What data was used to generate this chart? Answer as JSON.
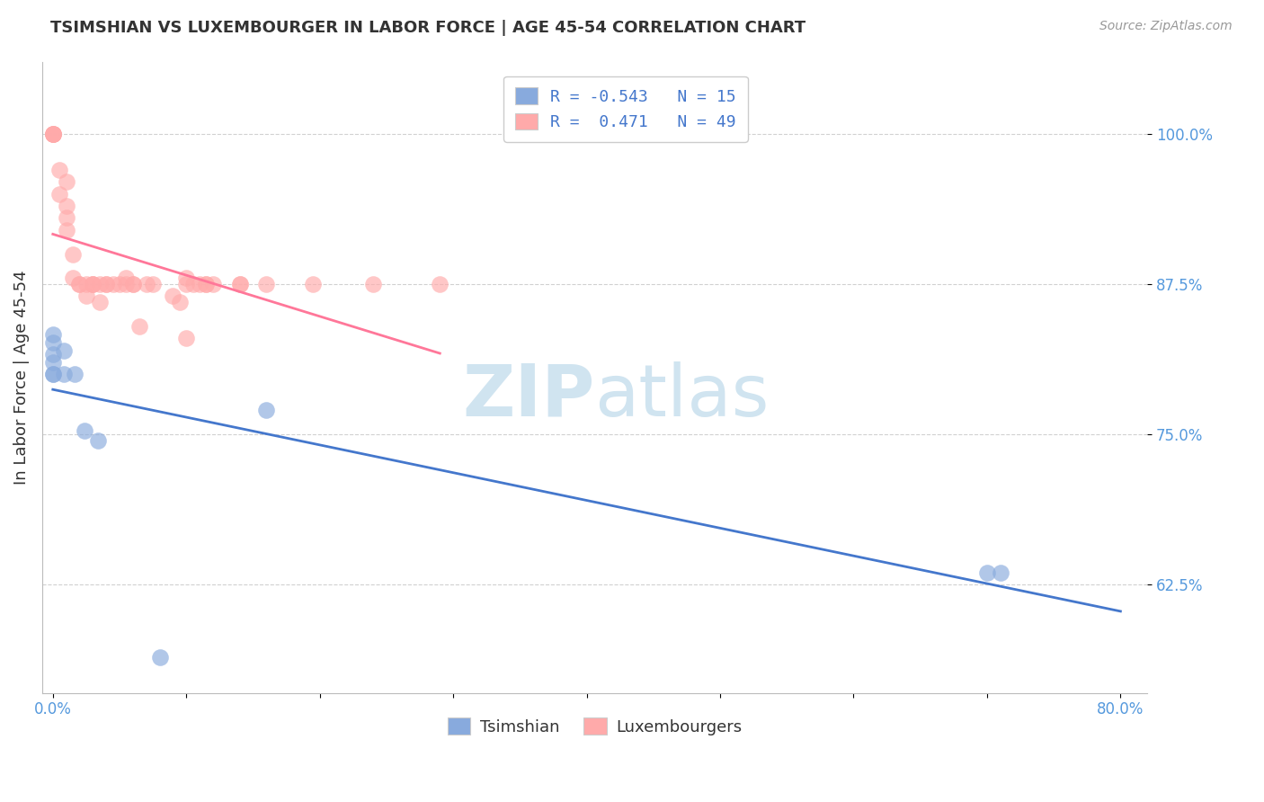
{
  "title": "TSIMSHIAN VS LUXEMBOURGER IN LABOR FORCE | AGE 45-54 CORRELATION CHART",
  "source": "Source: ZipAtlas.com",
  "ylabel": "In Labor Force | Age 45-54",
  "ytick_labels": [
    "62.5%",
    "75.0%",
    "87.5%",
    "100.0%"
  ],
  "ytick_values": [
    0.625,
    0.75,
    0.875,
    1.0
  ],
  "xlim": [
    -0.008,
    0.82
  ],
  "ylim": [
    0.535,
    1.06
  ],
  "tsimshian_color": "#88AADD",
  "luxembourger_color": "#FFAAAA",
  "tsimshian_line_color": "#4477CC",
  "luxembourger_line_color": "#FF7799",
  "watermark_color": "#D0E4F0",
  "tsimshian_x": [
    0.0,
    0.0,
    0.0,
    0.0,
    0.0,
    0.0,
    0.008,
    0.008,
    0.016,
    0.024,
    0.034,
    0.7,
    0.71,
    0.16,
    0.08
  ],
  "tsimshian_y": [
    0.826,
    0.817,
    0.81,
    0.833,
    0.8,
    0.8,
    0.8,
    0.82,
    0.8,
    0.753,
    0.745,
    0.635,
    0.635,
    0.77,
    0.565
  ],
  "luxembourger_x": [
    0.0,
    0.0,
    0.0,
    0.0,
    0.0,
    0.005,
    0.005,
    0.01,
    0.01,
    0.01,
    0.01,
    0.015,
    0.015,
    0.02,
    0.02,
    0.025,
    0.025,
    0.03,
    0.03,
    0.03,
    0.035,
    0.035,
    0.04,
    0.04,
    0.045,
    0.05,
    0.055,
    0.055,
    0.06,
    0.06,
    0.065,
    0.07,
    0.075,
    0.09,
    0.095,
    0.1,
    0.1,
    0.1,
    0.105,
    0.11,
    0.115,
    0.115,
    0.12,
    0.14,
    0.14,
    0.16,
    0.195,
    0.24,
    0.29
  ],
  "luxembourger_y": [
    1.0,
    1.0,
    1.0,
    1.0,
    1.0,
    0.95,
    0.97,
    0.92,
    0.93,
    0.94,
    0.96,
    0.88,
    0.9,
    0.875,
    0.875,
    0.875,
    0.865,
    0.875,
    0.875,
    0.875,
    0.86,
    0.875,
    0.875,
    0.875,
    0.875,
    0.875,
    0.875,
    0.88,
    0.875,
    0.875,
    0.84,
    0.875,
    0.875,
    0.865,
    0.86,
    0.83,
    0.88,
    0.875,
    0.875,
    0.875,
    0.875,
    0.875,
    0.875,
    0.875,
    0.875,
    0.875,
    0.875,
    0.875,
    0.875
  ],
  "background_color": "#FFFFFF",
  "grid_color": "#CCCCCC"
}
